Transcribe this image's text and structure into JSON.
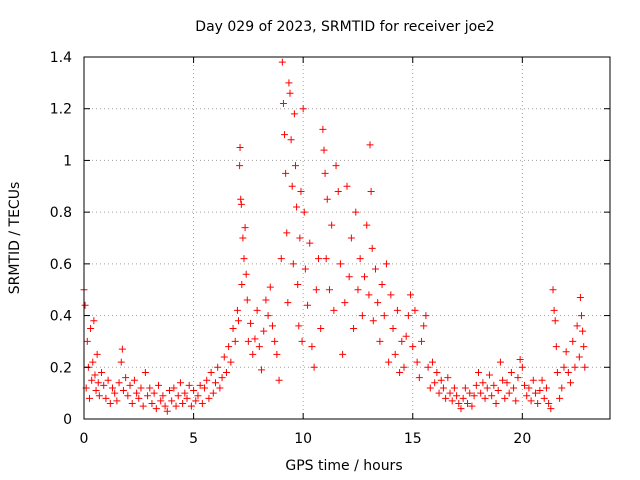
{
  "chart_data": {
    "type": "scatter",
    "title": "Day 029 of 2023, SRMTID for receiver joe2",
    "xlabel": "GPS time / hours",
    "ylabel": "SRMTID / TECUs",
    "xlim": [
      0,
      24
    ],
    "ylim": [
      0,
      1.4
    ],
    "xticks": [
      "0",
      "5",
      "10",
      "15",
      "20"
    ],
    "yticks": [
      "0",
      "0.2",
      "0.4",
      "0.6",
      "0.8",
      "1",
      "1.2",
      "1.4"
    ],
    "grid": true,
    "marker": "+",
    "color": "#ff0000",
    "series": [
      {
        "name": "SRMTID",
        "points": [
          [
            0.0,
            0.5
          ],
          [
            0.05,
            0.44
          ],
          [
            0.1,
            0.12
          ],
          [
            0.15,
            0.3
          ],
          [
            0.2,
            0.2
          ],
          [
            0.25,
            0.08
          ],
          [
            0.3,
            0.35
          ],
          [
            0.35,
            0.15
          ],
          [
            0.4,
            0.22
          ],
          [
            0.45,
            0.38
          ],
          [
            0.5,
            0.17
          ],
          [
            0.55,
            0.11
          ],
          [
            0.6,
            0.25
          ],
          [
            0.65,
            0.14
          ],
          [
            0.7,
            0.09
          ],
          [
            0.8,
            0.18
          ],
          [
            0.9,
            0.13
          ],
          [
            1.0,
            0.08
          ],
          [
            1.1,
            0.15
          ],
          [
            1.2,
            0.06
          ],
          [
            1.3,
            0.12
          ],
          [
            1.4,
            0.1
          ],
          [
            1.5,
            0.07
          ],
          [
            1.6,
            0.14
          ],
          [
            1.7,
            0.22
          ],
          [
            1.75,
            0.27
          ],
          [
            1.8,
            0.11
          ],
          [
            1.9,
            0.16
          ],
          [
            2.0,
            0.09
          ],
          [
            2.1,
            0.13
          ],
          [
            2.2,
            0.06
          ],
          [
            2.3,
            0.15
          ],
          [
            2.4,
            0.1
          ],
          [
            2.5,
            0.08
          ],
          [
            2.6,
            0.12
          ],
          [
            2.7,
            0.05
          ],
          [
            2.8,
            0.18
          ],
          [
            2.9,
            0.09
          ],
          [
            3.0,
            0.12
          ],
          [
            3.1,
            0.06
          ],
          [
            3.2,
            0.1
          ],
          [
            3.3,
            0.04
          ],
          [
            3.4,
            0.13
          ],
          [
            3.5,
            0.07
          ],
          [
            3.6,
            0.09
          ],
          [
            3.7,
            0.05
          ],
          [
            3.8,
            0.03
          ],
          [
            3.9,
            0.11
          ],
          [
            4.0,
            0.07
          ],
          [
            4.1,
            0.12
          ],
          [
            4.2,
            0.05
          ],
          [
            4.3,
            0.09
          ],
          [
            4.4,
            0.14
          ],
          [
            4.5,
            0.06
          ],
          [
            4.6,
            0.1
          ],
          [
            4.7,
            0.08
          ],
          [
            4.8,
            0.13
          ],
          [
            4.9,
            0.05
          ],
          [
            5.0,
            0.11
          ],
          [
            5.1,
            0.07
          ],
          [
            5.2,
            0.09
          ],
          [
            5.3,
            0.13
          ],
          [
            5.4,
            0.06
          ],
          [
            5.5,
            0.12
          ],
          [
            5.6,
            0.15
          ],
          [
            5.7,
            0.08
          ],
          [
            5.8,
            0.18
          ],
          [
            5.9,
            0.1
          ],
          [
            6.0,
            0.14
          ],
          [
            6.1,
            0.2
          ],
          [
            6.2,
            0.12
          ],
          [
            6.3,
            0.16
          ],
          [
            6.4,
            0.24
          ],
          [
            6.5,
            0.18
          ],
          [
            6.6,
            0.28
          ],
          [
            6.7,
            0.22
          ],
          [
            6.8,
            0.35
          ],
          [
            6.9,
            0.3
          ],
          [
            7.0,
            0.42
          ],
          [
            7.05,
            0.38
          ],
          [
            7.1,
            0.98
          ],
          [
            7.12,
            1.05
          ],
          [
            7.15,
            0.85
          ],
          [
            7.18,
            0.83
          ],
          [
            7.2,
            0.52
          ],
          [
            7.25,
            0.7
          ],
          [
            7.3,
            0.62
          ],
          [
            7.35,
            0.74
          ],
          [
            7.4,
            0.56
          ],
          [
            7.45,
            0.46
          ],
          [
            7.5,
            0.3
          ],
          [
            7.6,
            0.37
          ],
          [
            7.7,
            0.25
          ],
          [
            7.8,
            0.31
          ],
          [
            7.9,
            0.42
          ],
          [
            8.0,
            0.28
          ],
          [
            8.1,
            0.19
          ],
          [
            8.2,
            0.34
          ],
          [
            8.3,
            0.46
          ],
          [
            8.4,
            0.4
          ],
          [
            8.5,
            0.51
          ],
          [
            8.6,
            0.36
          ],
          [
            8.7,
            0.3
          ],
          [
            8.8,
            0.25
          ],
          [
            8.9,
            0.15
          ],
          [
            9.0,
            0.62
          ],
          [
            9.05,
            1.38
          ],
          [
            9.1,
            1.22
          ],
          [
            9.15,
            1.1
          ],
          [
            9.2,
            0.95
          ],
          [
            9.25,
            0.72
          ],
          [
            9.3,
            0.45
          ],
          [
            9.35,
            1.3
          ],
          [
            9.4,
            1.26
          ],
          [
            9.45,
            1.08
          ],
          [
            9.5,
            0.9
          ],
          [
            9.55,
            0.6
          ],
          [
            9.6,
            1.18
          ],
          [
            9.65,
            0.98
          ],
          [
            9.7,
            0.82
          ],
          [
            9.75,
            0.52
          ],
          [
            9.8,
            0.36
          ],
          [
            9.85,
            0.7
          ],
          [
            9.9,
            0.88
          ],
          [
            9.95,
            0.3
          ],
          [
            10.0,
            1.2
          ],
          [
            10.05,
            0.8
          ],
          [
            10.1,
            0.58
          ],
          [
            10.2,
            0.44
          ],
          [
            10.3,
            0.68
          ],
          [
            10.4,
            0.28
          ],
          [
            10.5,
            0.2
          ],
          [
            10.6,
            0.5
          ],
          [
            10.7,
            0.62
          ],
          [
            10.8,
            0.35
          ],
          [
            10.9,
            1.12
          ],
          [
            10.95,
            1.04
          ],
          [
            11.0,
            0.95
          ],
          [
            11.05,
            0.62
          ],
          [
            11.1,
            0.85
          ],
          [
            11.2,
            0.5
          ],
          [
            11.3,
            0.75
          ],
          [
            11.4,
            0.42
          ],
          [
            11.5,
            0.98
          ],
          [
            11.6,
            0.88
          ],
          [
            11.7,
            0.6
          ],
          [
            11.8,
            0.25
          ],
          [
            11.9,
            0.45
          ],
          [
            12.0,
            0.9
          ],
          [
            12.1,
            0.55
          ],
          [
            12.2,
            0.7
          ],
          [
            12.3,
            0.35
          ],
          [
            12.4,
            0.8
          ],
          [
            12.5,
            0.5
          ],
          [
            12.6,
            0.62
          ],
          [
            12.7,
            0.4
          ],
          [
            12.8,
            0.55
          ],
          [
            12.9,
            0.75
          ],
          [
            13.0,
            0.48
          ],
          [
            13.05,
            1.06
          ],
          [
            13.1,
            0.88
          ],
          [
            13.15,
            0.66
          ],
          [
            13.2,
            0.38
          ],
          [
            13.3,
            0.58
          ],
          [
            13.4,
            0.45
          ],
          [
            13.5,
            0.3
          ],
          [
            13.6,
            0.52
          ],
          [
            13.7,
            0.4
          ],
          [
            13.8,
            0.6
          ],
          [
            13.9,
            0.22
          ],
          [
            14.0,
            0.48
          ],
          [
            14.1,
            0.35
          ],
          [
            14.2,
            0.25
          ],
          [
            14.3,
            0.42
          ],
          [
            14.4,
            0.18
          ],
          [
            14.5,
            0.3
          ],
          [
            14.6,
            0.2
          ],
          [
            14.7,
            0.32
          ],
          [
            14.8,
            0.4
          ],
          [
            14.9,
            0.48
          ],
          [
            15.0,
            0.28
          ],
          [
            15.1,
            0.42
          ],
          [
            15.2,
            0.22
          ],
          [
            15.3,
            0.16
          ],
          [
            15.4,
            0.3
          ],
          [
            15.5,
            0.36
          ],
          [
            15.6,
            0.4
          ],
          [
            15.7,
            0.2
          ],
          [
            15.8,
            0.12
          ],
          [
            15.9,
            0.22
          ],
          [
            16.0,
            0.14
          ],
          [
            16.1,
            0.18
          ],
          [
            16.2,
            0.1
          ],
          [
            16.3,
            0.15
          ],
          [
            16.4,
            0.12
          ],
          [
            16.5,
            0.08
          ],
          [
            16.6,
            0.16
          ],
          [
            16.7,
            0.1
          ],
          [
            16.8,
            0.07
          ],
          [
            16.9,
            0.12
          ],
          [
            17.0,
            0.09
          ],
          [
            17.1,
            0.06
          ],
          [
            17.2,
            0.04
          ],
          [
            17.3,
            0.08
          ],
          [
            17.4,
            0.12
          ],
          [
            17.5,
            0.06
          ],
          [
            17.6,
            0.1
          ],
          [
            17.7,
            0.05
          ],
          [
            17.8,
            0.09
          ],
          [
            17.9,
            0.13
          ],
          [
            18.0,
            0.18
          ],
          [
            18.1,
            0.1
          ],
          [
            18.2,
            0.14
          ],
          [
            18.3,
            0.08
          ],
          [
            18.4,
            0.12
          ],
          [
            18.5,
            0.17
          ],
          [
            18.6,
            0.09
          ],
          [
            18.7,
            0.13
          ],
          [
            18.8,
            0.06
          ],
          [
            18.9,
            0.11
          ],
          [
            19.0,
            0.22
          ],
          [
            19.1,
            0.15
          ],
          [
            19.2,
            0.08
          ],
          [
            19.3,
            0.14
          ],
          [
            19.4,
            0.1
          ],
          [
            19.5,
            0.18
          ],
          [
            19.6,
            0.12
          ],
          [
            19.7,
            0.07
          ],
          [
            19.8,
            0.16
          ],
          [
            19.9,
            0.23
          ],
          [
            20.0,
            0.2
          ],
          [
            20.1,
            0.13
          ],
          [
            20.2,
            0.09
          ],
          [
            20.3,
            0.12
          ],
          [
            20.4,
            0.07
          ],
          [
            20.5,
            0.15
          ],
          [
            20.6,
            0.1
          ],
          [
            20.7,
            0.06
          ],
          [
            20.8,
            0.11
          ],
          [
            20.9,
            0.15
          ],
          [
            21.0,
            0.08
          ],
          [
            21.1,
            0.12
          ],
          [
            21.2,
            0.06
          ],
          [
            21.3,
            0.04
          ],
          [
            21.4,
            0.5
          ],
          [
            21.45,
            0.42
          ],
          [
            21.5,
            0.38
          ],
          [
            21.55,
            0.28
          ],
          [
            21.6,
            0.18
          ],
          [
            21.7,
            0.08
          ],
          [
            21.8,
            0.12
          ],
          [
            21.9,
            0.2
          ],
          [
            22.0,
            0.26
          ],
          [
            22.1,
            0.18
          ],
          [
            22.2,
            0.14
          ],
          [
            22.3,
            0.3
          ],
          [
            22.4,
            0.2
          ],
          [
            22.5,
            0.36
          ],
          [
            22.6,
            0.24
          ],
          [
            22.65,
            0.47
          ],
          [
            22.7,
            0.4
          ],
          [
            22.75,
            0.34
          ],
          [
            22.8,
            0.28
          ],
          [
            22.85,
            0.2
          ]
        ]
      }
    ]
  }
}
